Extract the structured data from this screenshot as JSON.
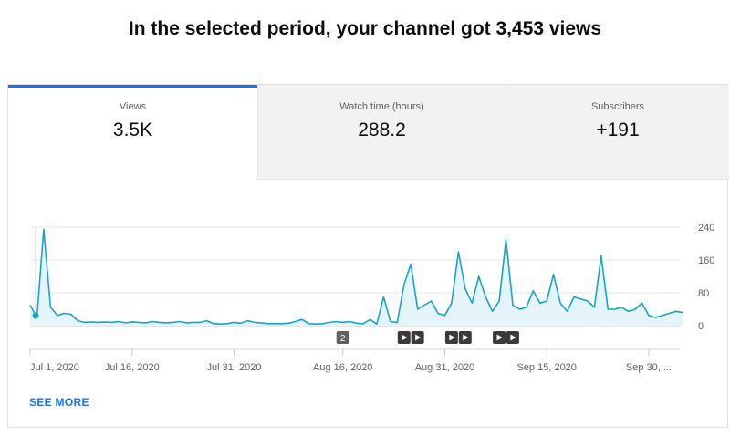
{
  "headline": "In the selected period, your channel got 3,453 views",
  "tabs": [
    {
      "label": "Views",
      "value": "3.5K"
    },
    {
      "label": "Watch time (hours)",
      "value": "288.2"
    },
    {
      "label": "Subscribers",
      "value": "+191"
    }
  ],
  "see_more": "SEE MORE",
  "colors": {
    "accent": "#1a73e8",
    "line": "#1aa3c8",
    "fill": "#e4f4f8"
  },
  "chart_data": {
    "type": "area",
    "title": "",
    "xlabel": "",
    "ylabel": "",
    "ylim": [
      0,
      240
    ],
    "yticks": [
      0,
      80,
      160,
      240
    ],
    "x_tick_labels": [
      "Jul 1, 2020",
      "Jul 16, 2020",
      "Jul 31, 2020",
      "Aug 16, 2020",
      "Aug 31, 2020",
      "Sep 15, 2020",
      "Sep 30, ..."
    ],
    "x_tick_days": [
      1,
      16,
      31,
      47,
      62,
      77,
      92
    ],
    "grid": true,
    "values": [
      50,
      20,
      235,
      45,
      25,
      30,
      28,
      12,
      8,
      9,
      8,
      9,
      8,
      10,
      7,
      9,
      8,
      7,
      10,
      8,
      7,
      8,
      10,
      7,
      8,
      8,
      12,
      5,
      4,
      5,
      8,
      6,
      12,
      8,
      7,
      5,
      5,
      5,
      6,
      10,
      15,
      5,
      4,
      5,
      8,
      10,
      8,
      10,
      6,
      5,
      15,
      4,
      70,
      10,
      8,
      100,
      150,
      40,
      50,
      60,
      30,
      25,
      55,
      180,
      90,
      55,
      120,
      70,
      35,
      60,
      210,
      50,
      40,
      45,
      85,
      55,
      60,
      125,
      55,
      35,
      70,
      65,
      60,
      45,
      170,
      40,
      40,
      45,
      35,
      40,
      55,
      25,
      20,
      25,
      30,
      35,
      32
    ],
    "markers": [
      {
        "label": "2",
        "day": 47
      },
      {
        "label": "",
        "day": 56
      },
      {
        "label": "",
        "day": 58
      },
      {
        "label": "",
        "day": 63
      },
      {
        "label": "",
        "day": 65
      },
      {
        "label": "",
        "day": 70
      },
      {
        "label": "",
        "day": 72
      }
    ]
  }
}
